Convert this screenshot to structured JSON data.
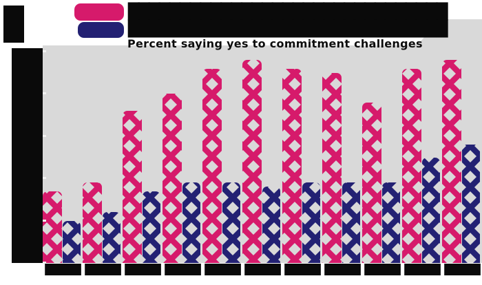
{
  "page": {
    "background": "#ffffff",
    "plot_background": "#d9d9d9",
    "text_color": "#0a0a0a"
  },
  "header": {
    "corner_text_redacted": "██",
    "legend": {
      "items": [
        {
          "swatch_color": "#d61a6b",
          "label": "███████████████████████████████"
        },
        {
          "swatch_color": "#232173",
          "label": "███████████████████████████████"
        }
      ]
    },
    "subtitle": "Percent saying yes to commitment challenges"
  },
  "y_axis": {
    "labels_redacted": "█████",
    "tick_count": 6
  },
  "chart_data": {
    "type": "bar",
    "grouped": true,
    "title": "████ (illegible in source image)",
    "subtitle": "Percent saying yes to commitment challenges",
    "categories": [
      "████",
      "████",
      "████",
      "████",
      "████",
      "████",
      "████",
      "████",
      "████",
      "████",
      "████"
    ],
    "series": [
      {
        "name": "████ (legend label illegible, pink crosshatch bars)",
        "color": "#d61a6b",
        "pattern": "diagonal-crosshatch",
        "values": [
          17,
          19,
          36,
          40,
          46,
          48,
          46,
          45,
          38,
          46,
          48
        ]
      },
      {
        "name": "████ (legend label illegible, navy solid bars)",
        "color": "#232173",
        "pattern": "solid",
        "values": [
          10,
          12,
          17,
          19,
          19,
          18,
          19,
          19,
          19,
          25,
          28
        ]
      }
    ],
    "xlabel": "",
    "ylabel": "",
    "ylim": [
      0,
      50
    ],
    "y_tick_count": 6,
    "grid": false,
    "legend_position": "top-left",
    "plot_bg": "#d9d9d9",
    "note": "All title, legend, y-axis and x-axis label text is posterized to solid black and illegible in the source; x labels appear to be 11 consecutive 4-character (year-like) labels; values estimated from bar pixel heights assuming a 0-50 axis with 6 ticks."
  }
}
